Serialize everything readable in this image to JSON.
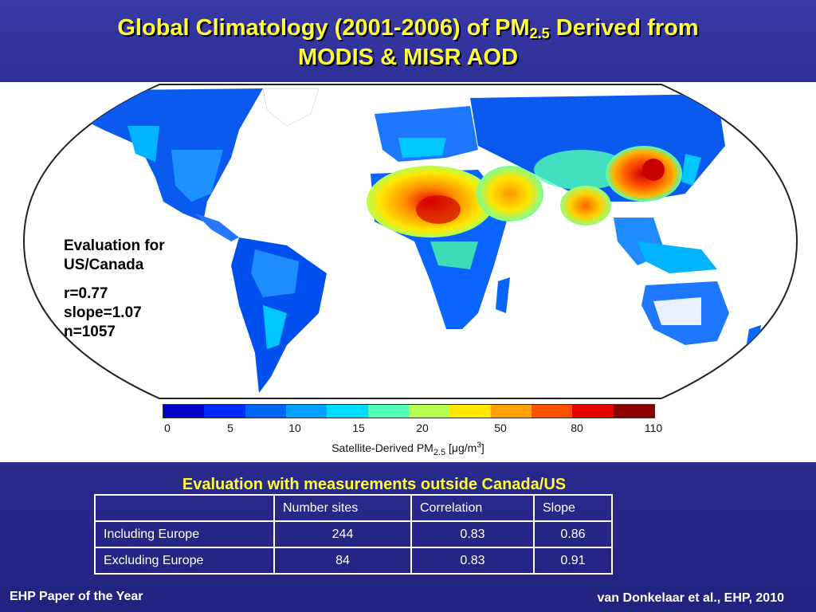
{
  "header": {
    "title_line1_pre": "Global Climatology (2001-2006) of PM",
    "title_sub": "2.5",
    "title_line1_post": " Derived from",
    "title_line2": "MODIS & MISR AOD"
  },
  "evaluation_box": {
    "line1": "Evaluation for",
    "line2": "US/Canada",
    "r": "r=0.77",
    "slope": "slope=1.07",
    "n": "n=1057"
  },
  "colorbar": {
    "ticks": [
      "0",
      "5",
      "10",
      "15",
      "20",
      "50",
      "80",
      "110"
    ],
    "label_pre": "Satellite-Derived PM",
    "label_sub": "2.5",
    "label_post_a": " [",
    "label_mu": "μ",
    "label_post_b": "g/m",
    "label_sup": "3",
    "label_end": "]",
    "colors": [
      "#0000c8",
      "#0028ff",
      "#0064ff",
      "#00a0ff",
      "#00dcff",
      "#50ffb4",
      "#b4ff50",
      "#ffe600",
      "#ffa000",
      "#ff5000",
      "#e60000",
      "#8c0000"
    ]
  },
  "evaluation_table": {
    "caption": "Evaluation with measurements outside Canada/US",
    "headers": [
      "",
      "Number sites",
      "Correlation",
      "Slope"
    ],
    "rows": [
      {
        "label": "Including Europe",
        "sites": "244",
        "correlation": "0.83",
        "slope": "0.86"
      },
      {
        "label": "Excluding Europe",
        "sites": "84",
        "correlation": "0.83",
        "slope": "0.91"
      }
    ]
  },
  "footer": {
    "left": "EHP Paper of the Year",
    "right": "van Donkelaar et al., EHP, 2010"
  }
}
